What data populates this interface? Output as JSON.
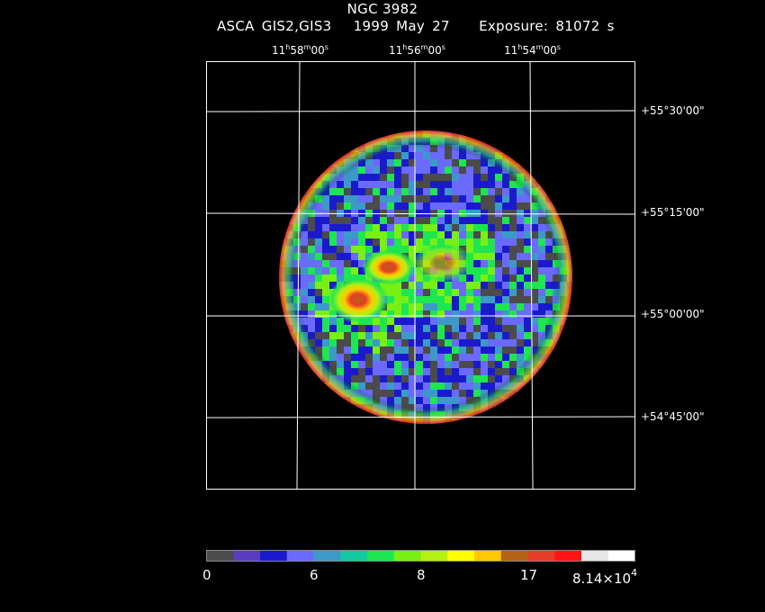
{
  "title": "NGC 3982",
  "subtitle": {
    "instrument": "ASCA GIS2,GIS3",
    "date": "1999 May 27",
    "exposure": "Exposure: 81072 s"
  },
  "ra_labels": [
    {
      "h": "11",
      "m": "58",
      "s": "00"
    },
    {
      "h": "11",
      "m": "56",
      "s": "00"
    },
    {
      "h": "11",
      "m": "54",
      "s": "00"
    }
  ],
  "dec_labels": [
    "+55°30'00\"",
    "+55°15'00\"",
    "+55°00'00\"",
    "+54°45'00\""
  ],
  "colorbar": {
    "colors": [
      "#4b4b4b",
      "#5a3cc0",
      "#1a1acc",
      "#6a6aff",
      "#3c9ac8",
      "#14c8a0",
      "#1ee650",
      "#78f014",
      "#b4f014",
      "#ffff00",
      "#ffc800",
      "#b46414",
      "#e63c28",
      "#ff1414",
      "#e6e6e6",
      "#ffffff"
    ],
    "tick_labels": [
      "0",
      "6",
      "8",
      "17",
      "8.14×10"
    ],
    "exponent": "4"
  }
}
